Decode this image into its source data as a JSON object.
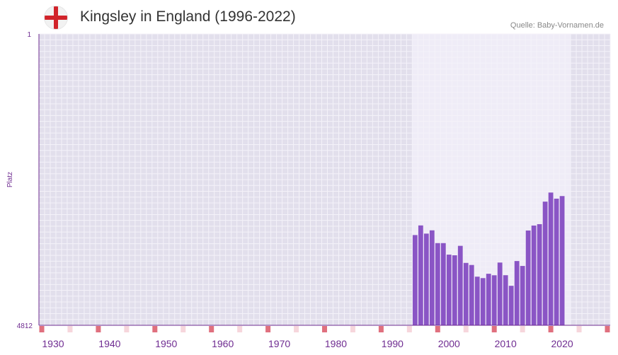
{
  "header": {
    "flag": "england-flag-icon",
    "title": "Kingsley in England (1996-2022)",
    "source": "Quelle: Baby-Vornamen.de"
  },
  "colors": {
    "bar": "#8a55c5",
    "plot_bg": "#e2dfec",
    "highlight_bg": "#efecf7",
    "grid": "#f4f2f9",
    "axis": "#6f2c91",
    "tick_label": "#6f2c91",
    "marker_strong": "#e0707e",
    "marker_light": "#f6d6dc"
  },
  "chart_data": {
    "type": "bar",
    "title": "Kingsley in England (1996-2022)",
    "xlabel": "",
    "ylabel": "Platz",
    "y_axis_inverted": true,
    "ylim": [
      4812,
      1
    ],
    "y_tick_labels": [
      "1",
      "4812"
    ],
    "xlim": [
      1928,
      2028
    ],
    "x_tick_labels": [
      "1930",
      "1940",
      "1950",
      "1960",
      "1970",
      "1980",
      "1990",
      "2000",
      "2010",
      "2020"
    ],
    "highlight_range": [
      1994,
      2021
    ],
    "year_markers_strong": [
      1928,
      1938,
      1948,
      1958,
      1968,
      1978,
      1988,
      1998,
      2008,
      2018,
      2028
    ],
    "year_markers_light": [
      1933,
      1943,
      1953,
      1963,
      1973,
      1983,
      1993,
      2003,
      2013,
      2023
    ],
    "x": [
      1994,
      1995,
      1996,
      1997,
      1998,
      1999,
      2000,
      2001,
      2002,
      2003,
      2004,
      2005,
      2006,
      2007,
      2008,
      2009,
      2010,
      2011,
      2012,
      2013,
      2014,
      2015,
      2016,
      2017,
      2018,
      2019,
      2020
    ],
    "series": [
      {
        "name": "Platz",
        "values": [
          3322,
          3163,
          3298,
          3244,
          3455,
          3455,
          3645,
          3656,
          3500,
          3782,
          3816,
          4009,
          4033,
          3961,
          3986,
          3776,
          3985,
          4160,
          3751,
          3832,
          3247,
          3165,
          3142,
          2770,
          2620,
          2721,
          2678
        ]
      }
    ]
  }
}
